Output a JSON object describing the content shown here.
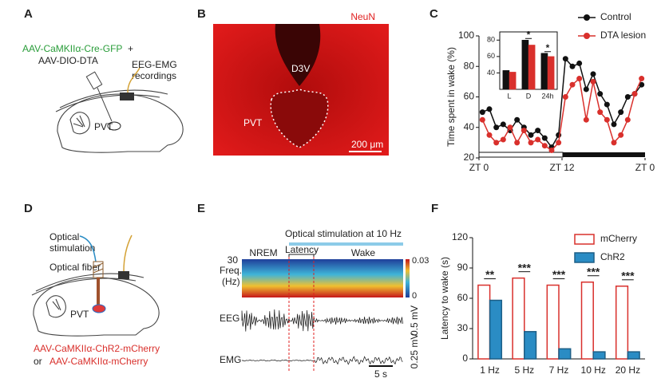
{
  "panels": {
    "A": {
      "label": "A",
      "vector_1": "AAV-CaMKIIα-Cre-GFP",
      "plus": "+",
      "vector_2": "AAV-DIO-DTA",
      "recording": [
        "EEG-EMG",
        "recordings"
      ],
      "region": "PVT"
    },
    "B": {
      "label": "B",
      "stain": "NeuN",
      "ventricle": "D3V",
      "region": "PVT",
      "scale": "200 μm"
    },
    "D": {
      "label": "D",
      "light": [
        "Optical",
        "stimulation"
      ],
      "fiber": "Optical fiber",
      "region": "PVT",
      "vector_1": "AAV-CaMKIIα-ChR2-mCherry",
      "or": "or",
      "vector_2": "AAV-CaMKIIα-mCherry"
    },
    "E": {
      "label": "E",
      "stim": "Optical stimulation at 10 Hz",
      "state_1": "NREM",
      "latency": "Latency",
      "state_2": "Wake",
      "freq_label": [
        "Freq.",
        "(Hz)"
      ],
      "freq_max": "30",
      "color_max": "0.03",
      "color_min": "0",
      "eeg": "EEG",
      "eeg_scale": "0.5 mV",
      "emg": "EMG",
      "emg_scale": "0.25 mV",
      "time_scale": "5 s"
    },
    "C": {
      "label": "C"
    },
    "F": {
      "label": "F"
    }
  },
  "chart_data": [
    {
      "type": "line",
      "ylabel": "Time spent in wake (%)",
      "x": [
        0.5,
        1.5,
        2.5,
        3.5,
        4.5,
        5.5,
        6.5,
        7.5,
        8.5,
        9.5,
        10.5,
        11.5,
        12.5,
        13.5,
        14.5,
        15.5,
        16.5,
        17.5,
        18.5,
        19.5,
        20.5,
        21.5,
        22.5,
        23.5
      ],
      "series": [
        {
          "name": "Control",
          "color": "#111111",
          "values": [
            50,
            52,
            40,
            42,
            38,
            45,
            40,
            35,
            38,
            33,
            27,
            35,
            85,
            80,
            82,
            65,
            75,
            62,
            55,
            42,
            50,
            60,
            62,
            68
          ]
        },
        {
          "name": "DTA lesion",
          "color": "#d9302c",
          "values": [
            45,
            35,
            30,
            32,
            40,
            30,
            38,
            30,
            32,
            28,
            25,
            30,
            60,
            68,
            72,
            45,
            70,
            50,
            45,
            30,
            35,
            45,
            62,
            72
          ]
        }
      ],
      "xlim": [
        0,
        24
      ],
      "xticks": [
        {
          "value": 0,
          "label": "ZT 0"
        },
        {
          "value": 12,
          "label": "ZT 12"
        },
        {
          "value": 24,
          "label": "ZT 0"
        }
      ],
      "ylim": [
        20,
        100
      ],
      "yticks": [
        20,
        40,
        60,
        80,
        100
      ],
      "legend": "upper right"
    },
    {
      "type": "bar",
      "categories": [
        "L",
        "D",
        "24h"
      ],
      "series": [
        {
          "name": "Control",
          "color": "#111111",
          "edgecolor": "#111111",
          "values": [
            43,
            80,
            64
          ]
        },
        {
          "name": "DTA lesion",
          "color": "#d9302c",
          "edgecolor": "#d9302c",
          "values": [
            41,
            74,
            60
          ]
        }
      ],
      "significance": [
        null,
        "*",
        "*"
      ],
      "ylim": [
        20,
        90
      ],
      "yticks": [
        40,
        60,
        80
      ]
    },
    {
      "type": "bar",
      "ylabel": "Latency to wake (s)",
      "categories": [
        "1 Hz",
        "5 Hz",
        "7 Hz",
        "10 Hz",
        "20 Hz"
      ],
      "series": [
        {
          "name": "mCherry",
          "color": "#ffffff",
          "edgecolor": "#d9302c",
          "values": [
            73,
            80,
            73,
            76,
            72
          ]
        },
        {
          "name": "ChR2",
          "color": "#2a8cc4",
          "edgecolor": "#1d5f86",
          "values": [
            58,
            27,
            10,
            7,
            7
          ]
        }
      ],
      "significance": [
        "**",
        "***",
        "***",
        "***",
        "***"
      ],
      "ylim": [
        0,
        120
      ],
      "yticks": [
        0,
        30,
        60,
        90,
        120
      ],
      "legend": "upper right"
    }
  ]
}
